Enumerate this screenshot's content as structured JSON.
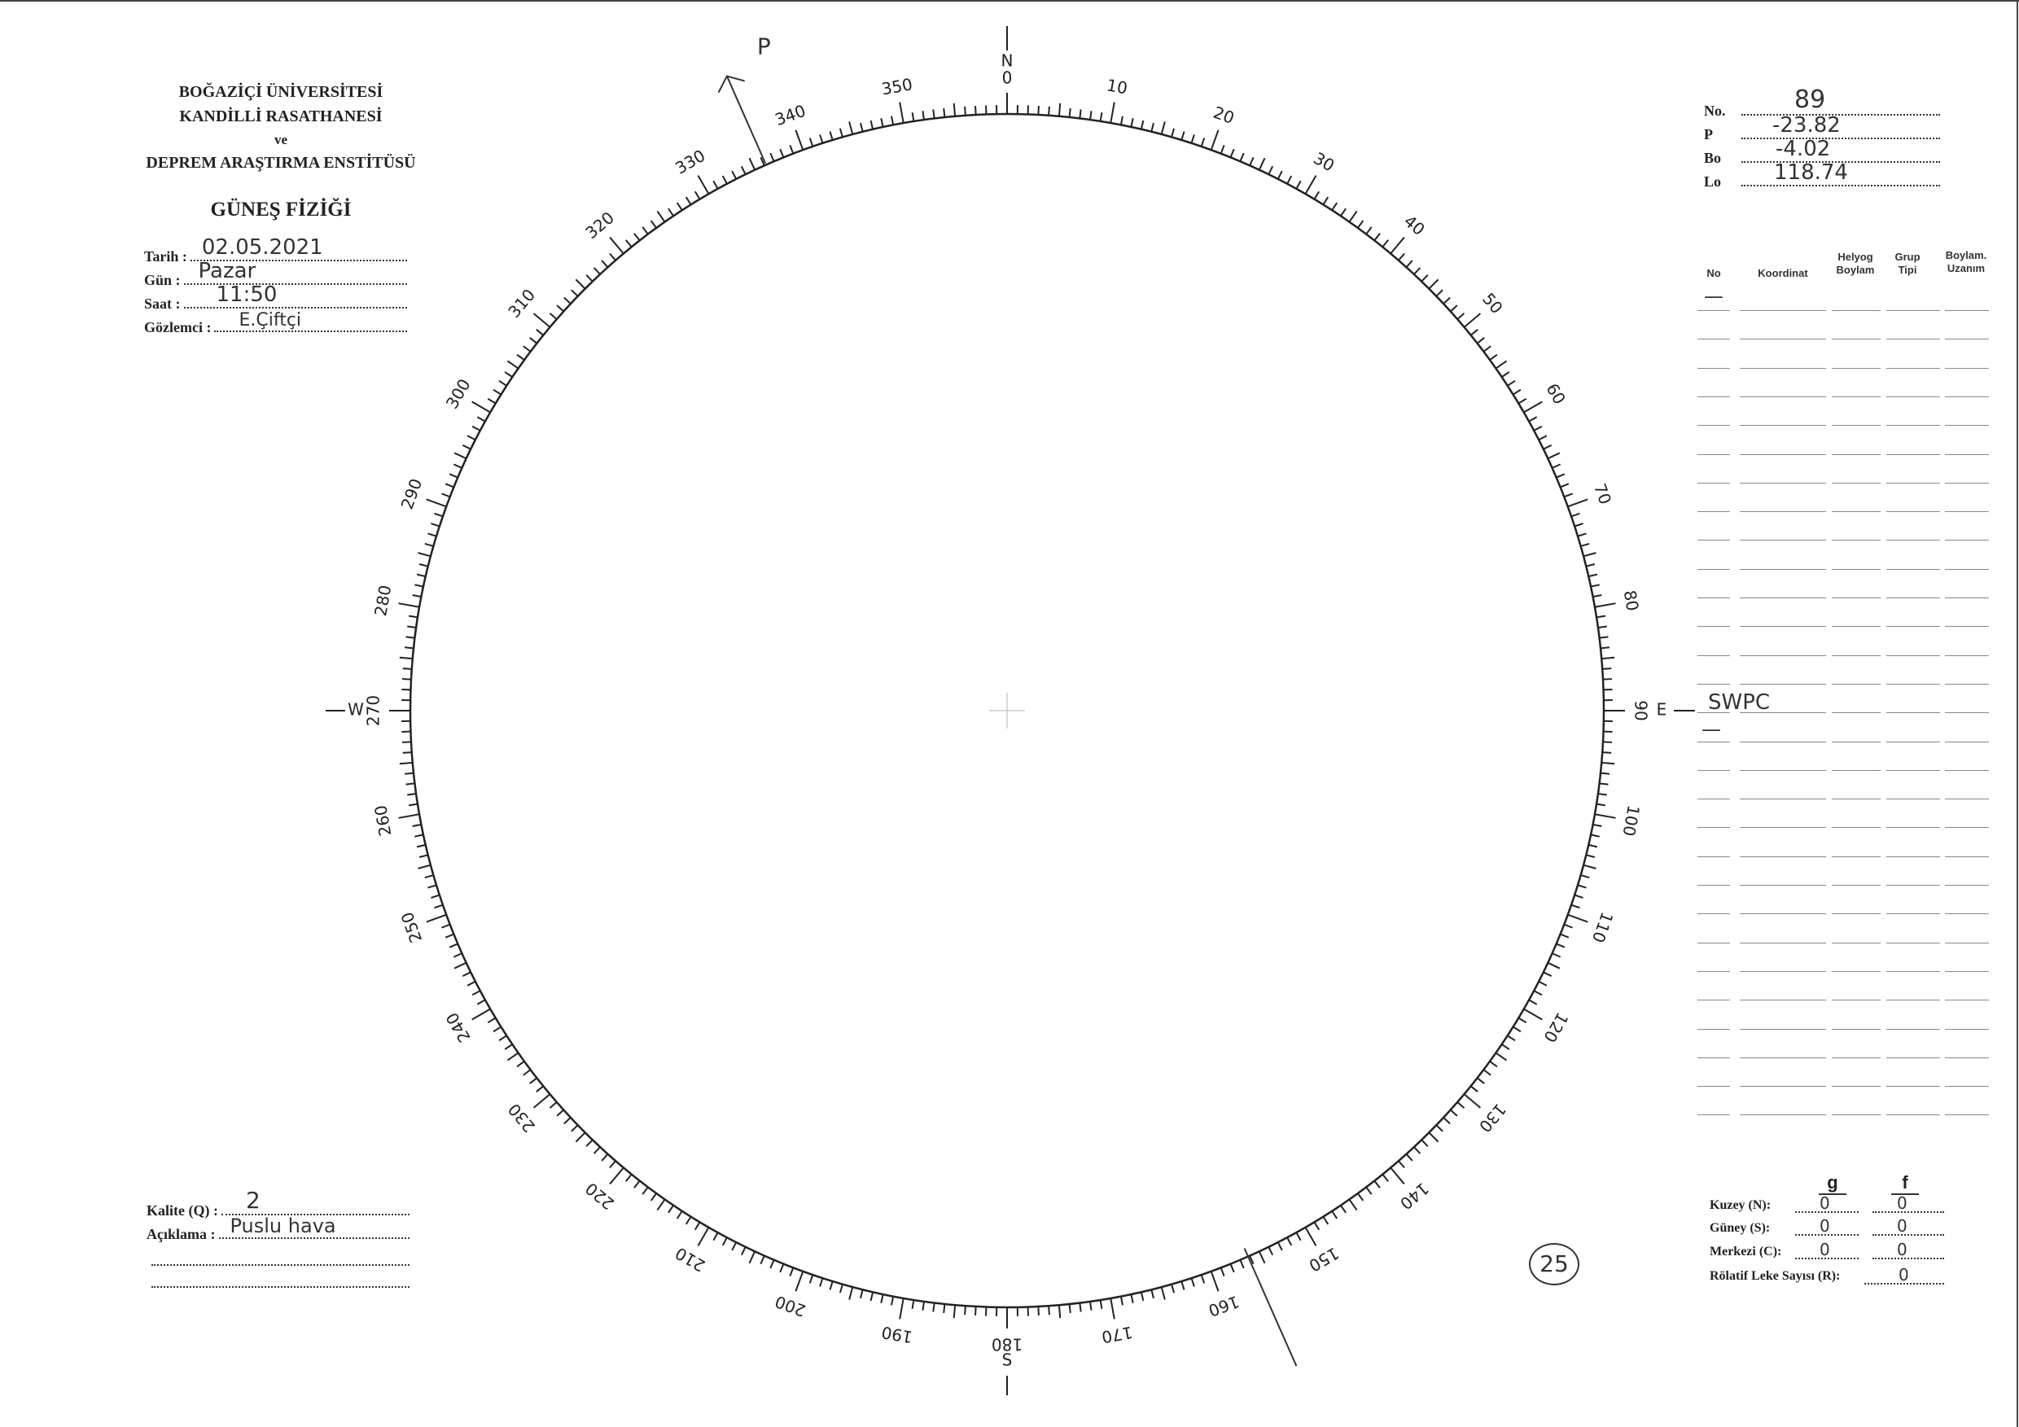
{
  "header": {
    "line1": "BOĞAZİÇİ ÜNİVERSİTESİ",
    "line2": "KANDİLLİ RASATHANESİ",
    "line3": "ve",
    "line4": "DEPREM ARAŞTIRMA ENSTİTÜSÜ",
    "title": "GÜNEŞ FİZİĞİ"
  },
  "observation": {
    "date_label": "Tarih :",
    "date_value": "02.05.2021",
    "day_label": "Gün :",
    "day_value": "Pazar",
    "time_label": "Saat :",
    "time_value": "11:50",
    "observer_label": "Gözlemci :",
    "observer_value": "E.Çiftçi"
  },
  "params": {
    "no_label": "No.",
    "no_value": "89",
    "p_label": "P",
    "p_value": "-23.82",
    "bo_label": "Bo",
    "bo_value": "-4.02",
    "lo_label": "Lo",
    "lo_value": "118.74"
  },
  "table": {
    "headers": [
      "No",
      "Koordinat",
      "Helyog Boylam",
      "Grup Tipi",
      "Boylam. Uzanım"
    ],
    "first_row_no": "—",
    "note": "SWPC",
    "note_below": "—",
    "row_count": 29
  },
  "dial": {
    "north": "N",
    "south": "S",
    "east": "E",
    "west": "W",
    "labels": [
      "0",
      "10",
      "20",
      "30",
      "40",
      "50",
      "60",
      "70",
      "80",
      "90",
      "100",
      "110",
      "120",
      "130",
      "140",
      "150",
      "160",
      "170",
      "180",
      "190",
      "200",
      "210",
      "220",
      "230",
      "240",
      "250",
      "260",
      "270",
      "280",
      "290",
      "300",
      "310",
      "320",
      "330",
      "340",
      "350"
    ],
    "p_axis_label": "P",
    "p_angle_deg": -23.82
  },
  "quality": {
    "label": "Kalite (Q) :",
    "value": "2",
    "comment_label": "Açıklama :",
    "comment_value": "Puslu hava"
  },
  "counts": {
    "g_header": "g",
    "f_header": "f",
    "north_label": "Kuzey (N):",
    "north_g": "0",
    "north_f": "0",
    "south_label": "Güney (S):",
    "south_g": "0",
    "south_f": "0",
    "center_label": "Merkezi (C):",
    "center_g": "0",
    "center_f": "0",
    "relative_label": "Rölatif Leke Sayısı (R):",
    "relative_value": "0"
  },
  "page_number": "25"
}
